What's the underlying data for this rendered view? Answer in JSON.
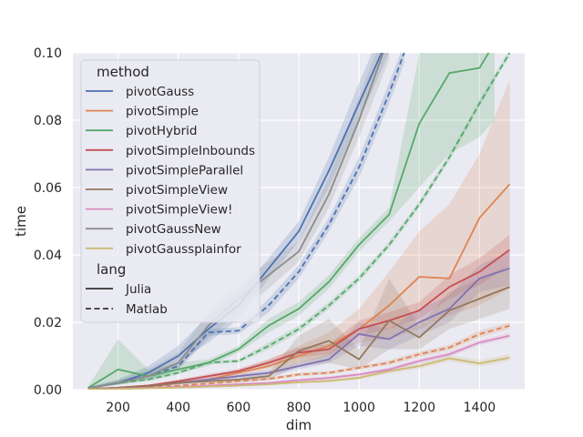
{
  "chart_data": {
    "type": "line",
    "xlabel": "dim",
    "ylabel": "time",
    "xlim": [
      50,
      1550
    ],
    "ylim": [
      0,
      0.1
    ],
    "xticks": [
      200,
      400,
      600,
      800,
      1000,
      1200,
      1400
    ],
    "yticks": [
      0.0,
      0.02,
      0.04,
      0.06,
      0.08,
      0.1
    ],
    "grid": true,
    "background": "#eaeaf2",
    "legend": {
      "placement": "top-left",
      "hue_title": "method",
      "style_title": "lang",
      "styles": [
        {
          "name": "Julia",
          "dash": "solid"
        },
        {
          "name": "Matlab",
          "dash": "dashed"
        }
      ]
    },
    "series": [
      {
        "name": "pivotGauss",
        "lang": "Julia",
        "color": "#4c72b0",
        "x": [
          100,
          200,
          300,
          400,
          500,
          600,
          700,
          800,
          900,
          1000,
          1100
        ],
        "y": [
          0.0005,
          0.002,
          0.005,
          0.01,
          0.018,
          0.025,
          0.036,
          0.047,
          0.065,
          0.085,
          0.105
        ],
        "lo": [
          0.0003,
          0.0015,
          0.004,
          0.008,
          0.014,
          0.021,
          0.033,
          0.044,
          0.06,
          0.08,
          0.1
        ],
        "hi": [
          0.0008,
          0.003,
          0.007,
          0.013,
          0.022,
          0.029,
          0.039,
          0.05,
          0.069,
          0.091,
          0.112
        ]
      },
      {
        "name": "pivotGauss",
        "lang": "Matlab",
        "color": "#4c72b0",
        "x": [
          100,
          200,
          300,
          400,
          500,
          600,
          700,
          800,
          900,
          1000,
          1100,
          1150
        ],
        "y": [
          0.0004,
          0.002,
          0.004,
          0.007,
          0.017,
          0.0175,
          0.025,
          0.035,
          0.049,
          0.066,
          0.088,
          0.1
        ],
        "lo": [
          0.0003,
          0.0015,
          0.003,
          0.006,
          0.016,
          0.0165,
          0.023,
          0.033,
          0.047,
          0.063,
          0.085,
          0.097
        ],
        "hi": [
          0.0005,
          0.0025,
          0.005,
          0.008,
          0.018,
          0.0185,
          0.027,
          0.037,
          0.051,
          0.069,
          0.091,
          0.103
        ]
      },
      {
        "name": "pivotSimple",
        "lang": "Julia",
        "color": "#dd8452",
        "x": [
          100,
          200,
          300,
          400,
          500,
          600,
          700,
          800,
          900,
          1000,
          1100,
          1200,
          1300,
          1400,
          1500
        ],
        "y": [
          0.0002,
          0.0006,
          0.0012,
          0.002,
          0.003,
          0.005,
          0.007,
          0.01,
          0.013,
          0.018,
          0.025,
          0.0335,
          0.033,
          0.051,
          0.061
        ],
        "lo": [
          0.0001,
          0.0004,
          0.0009,
          0.0016,
          0.0025,
          0.004,
          0.006,
          0.008,
          0.01,
          0.014,
          0.015,
          0.018,
          0.022,
          0.025,
          0.03
        ],
        "hi": [
          0.0003,
          0.0008,
          0.0015,
          0.0025,
          0.0036,
          0.006,
          0.009,
          0.013,
          0.017,
          0.024,
          0.035,
          0.047,
          0.055,
          0.07,
          0.092
        ]
      },
      {
        "name": "pivotSimple",
        "lang": "Matlab",
        "color": "#dd8452",
        "x": [
          100,
          200,
          300,
          400,
          500,
          600,
          700,
          800,
          900,
          1000,
          1100,
          1200,
          1300,
          1400,
          1500
        ],
        "y": [
          0.0002,
          0.0004,
          0.0008,
          0.0012,
          0.0018,
          0.0025,
          0.0032,
          0.0045,
          0.005,
          0.0065,
          0.008,
          0.0105,
          0.0125,
          0.0165,
          0.019
        ],
        "lo": [
          0.0001,
          0.0003,
          0.0006,
          0.001,
          0.0015,
          0.0021,
          0.0028,
          0.004,
          0.0045,
          0.006,
          0.0073,
          0.0097,
          0.0117,
          0.0155,
          0.018
        ],
        "hi": [
          0.0003,
          0.0005,
          0.001,
          0.0014,
          0.0021,
          0.0029,
          0.0036,
          0.005,
          0.0055,
          0.007,
          0.0087,
          0.0113,
          0.0133,
          0.0175,
          0.02
        ]
      },
      {
        "name": "pivotHybrid",
        "lang": "Julia",
        "color": "#55a868",
        "x": [
          100,
          200,
          300,
          400,
          500,
          600,
          700,
          800,
          900,
          1000,
          1100,
          1200,
          1300,
          1400,
          1450
        ],
        "y": [
          0.0005,
          0.006,
          0.004,
          0.006,
          0.008,
          0.012,
          0.019,
          0.024,
          0.032,
          0.043,
          0.052,
          0.079,
          0.094,
          0.0955,
          0.103
        ],
        "lo": [
          0.0003,
          0.0015,
          0.003,
          0.005,
          0.007,
          0.011,
          0.017,
          0.022,
          0.03,
          0.041,
          0.05,
          0.06,
          0.07,
          0.075,
          0.08
        ],
        "hi": [
          0.0008,
          0.015,
          0.006,
          0.008,
          0.009,
          0.013,
          0.021,
          0.026,
          0.034,
          0.045,
          0.054,
          0.1,
          0.11,
          0.11,
          0.11
        ]
      },
      {
        "name": "pivotHybrid",
        "lang": "Matlab",
        "color": "#55a868",
        "x": [
          100,
          200,
          300,
          400,
          500,
          600,
          700,
          800,
          900,
          1000,
          1100,
          1200,
          1300,
          1400,
          1500
        ],
        "y": [
          0.0004,
          0.002,
          0.003,
          0.005,
          0.008,
          0.0085,
          0.013,
          0.018,
          0.025,
          0.033,
          0.043,
          0.055,
          0.069,
          0.085,
          0.1
        ],
        "lo": [
          0.0003,
          0.0015,
          0.0025,
          0.0045,
          0.0075,
          0.008,
          0.012,
          0.017,
          0.024,
          0.032,
          0.042,
          0.054,
          0.068,
          0.084,
          0.099
        ],
        "hi": [
          0.0005,
          0.0025,
          0.0035,
          0.0055,
          0.0085,
          0.009,
          0.014,
          0.019,
          0.026,
          0.034,
          0.044,
          0.056,
          0.07,
          0.086,
          0.101
        ]
      },
      {
        "name": "pivotSimpleInbounds",
        "lang": "Julia",
        "color": "#c44e52",
        "x": [
          100,
          200,
          300,
          400,
          500,
          600,
          700,
          800,
          900,
          1000,
          1100,
          1200,
          1300,
          1400,
          1500
        ],
        "y": [
          0.0002,
          0.0006,
          0.0012,
          0.0025,
          0.004,
          0.0055,
          0.008,
          0.011,
          0.012,
          0.018,
          0.0205,
          0.0235,
          0.0305,
          0.035,
          0.0415
        ],
        "lo": [
          0.0001,
          0.0004,
          0.001,
          0.002,
          0.0035,
          0.0048,
          0.007,
          0.0095,
          0.0105,
          0.016,
          0.018,
          0.021,
          0.027,
          0.031,
          0.037
        ],
        "hi": [
          0.0003,
          0.0008,
          0.0015,
          0.003,
          0.0047,
          0.0062,
          0.009,
          0.0125,
          0.0135,
          0.0205,
          0.023,
          0.026,
          0.034,
          0.039,
          0.046
        ]
      },
      {
        "name": "pivotSimpleParallel",
        "lang": "Julia",
        "color": "#8172b3",
        "x": [
          100,
          200,
          300,
          400,
          500,
          600,
          700,
          800,
          900,
          1000,
          1100,
          1200,
          1300,
          1400,
          1500
        ],
        "y": [
          0.0002,
          0.0005,
          0.001,
          0.002,
          0.003,
          0.004,
          0.005,
          0.007,
          0.009,
          0.0165,
          0.015,
          0.02,
          0.024,
          0.033,
          0.036
        ],
        "lo": [
          0.0001,
          0.0004,
          0.0008,
          0.0016,
          0.0025,
          0.0034,
          0.0043,
          0.006,
          0.0078,
          0.013,
          0.012,
          0.016,
          0.02,
          0.029,
          0.031
        ],
        "hi": [
          0.0003,
          0.0006,
          0.0012,
          0.0024,
          0.0035,
          0.0046,
          0.0058,
          0.008,
          0.0105,
          0.02,
          0.018,
          0.024,
          0.028,
          0.037,
          0.041
        ]
      },
      {
        "name": "pivotSimpleView",
        "lang": "Julia",
        "color": "#937860",
        "x": [
          100,
          200,
          300,
          400,
          500,
          600,
          700,
          800,
          900,
          1000,
          1100,
          1200,
          1300,
          1400,
          1500
        ],
        "y": [
          0.0002,
          0.0006,
          0.001,
          0.002,
          0.0025,
          0.003,
          0.004,
          0.0115,
          0.0145,
          0.009,
          0.0205,
          0.0155,
          0.0235,
          0.027,
          0.0305
        ],
        "lo": [
          0.0001,
          0.0004,
          0.0008,
          0.0015,
          0.002,
          0.0025,
          0.003,
          0.007,
          0.008,
          0.006,
          0.012,
          0.012,
          0.018,
          0.021,
          0.024
        ],
        "hi": [
          0.0003,
          0.0008,
          0.0012,
          0.0025,
          0.003,
          0.0035,
          0.005,
          0.016,
          0.021,
          0.012,
          0.033,
          0.019,
          0.029,
          0.033,
          0.037
        ]
      },
      {
        "name": "pivotSimpleView!",
        "lang": "Julia",
        "color": "#da8bc3",
        "x": [
          100,
          200,
          300,
          400,
          500,
          600,
          700,
          800,
          900,
          1000,
          1100,
          1200,
          1300,
          1400,
          1500
        ],
        "y": [
          0.0001,
          0.0003,
          0.0005,
          0.0008,
          0.0012,
          0.0016,
          0.002,
          0.0028,
          0.0035,
          0.0045,
          0.006,
          0.0085,
          0.0105,
          0.014,
          0.016
        ],
        "lo": [
          0.0001,
          0.0002,
          0.0004,
          0.0006,
          0.001,
          0.0013,
          0.0017,
          0.0024,
          0.003,
          0.004,
          0.0054,
          0.0078,
          0.0097,
          0.0132,
          0.0152
        ],
        "hi": [
          0.0002,
          0.0004,
          0.0006,
          0.001,
          0.0014,
          0.0019,
          0.0023,
          0.0032,
          0.004,
          0.005,
          0.0066,
          0.0092,
          0.0113,
          0.0148,
          0.0168
        ]
      },
      {
        "name": "pivotGaussNew",
        "lang": "Julia",
        "color": "#8c8c8c",
        "x": [
          100,
          200,
          300,
          400,
          500,
          600,
          700,
          800,
          900,
          1000,
          1100
        ],
        "y": [
          0.0004,
          0.002,
          0.004,
          0.008,
          0.019,
          0.027,
          0.034,
          0.041,
          0.058,
          0.08,
          0.105
        ],
        "lo": [
          0.0002,
          0.0015,
          0.003,
          0.006,
          0.015,
          0.023,
          0.03,
          0.038,
          0.054,
          0.075,
          0.098
        ],
        "hi": [
          0.0006,
          0.003,
          0.006,
          0.011,
          0.023,
          0.031,
          0.038,
          0.044,
          0.063,
          0.087,
          0.11
        ]
      },
      {
        "name": "pivotGaussplainfor",
        "lang": "Julia",
        "color": "#ccb974",
        "x": [
          100,
          200,
          300,
          400,
          500,
          600,
          700,
          800,
          900,
          1000,
          1100,
          1200,
          1300,
          1400,
          1500
        ],
        "y": [
          0.0001,
          0.0002,
          0.0004,
          0.0006,
          0.0009,
          0.0012,
          0.0016,
          0.0022,
          0.0026,
          0.0035,
          0.0055,
          0.007,
          0.0093,
          0.0078,
          0.0095
        ],
        "lo": [
          0.0001,
          0.0001,
          0.0003,
          0.0004,
          0.0007,
          0.001,
          0.0013,
          0.0018,
          0.0021,
          0.003,
          0.0048,
          0.0062,
          0.0084,
          0.0068,
          0.0085
        ],
        "hi": [
          0.0002,
          0.0003,
          0.0005,
          0.0008,
          0.0011,
          0.0014,
          0.0019,
          0.0026,
          0.0031,
          0.004,
          0.0062,
          0.0078,
          0.0102,
          0.0088,
          0.0105
        ]
      }
    ],
    "legend_entries": [
      {
        "name": "pivotGauss",
        "color": "#4c72b0"
      },
      {
        "name": "pivotSimple",
        "color": "#dd8452"
      },
      {
        "name": "pivotHybrid",
        "color": "#55a868"
      },
      {
        "name": "pivotSimpleInbounds",
        "color": "#c44e52"
      },
      {
        "name": "pivotSimpleParallel",
        "color": "#8172b3"
      },
      {
        "name": "pivotSimpleView",
        "color": "#937860"
      },
      {
        "name": "pivotSimpleView!",
        "color": "#da8bc3"
      },
      {
        "name": "pivotGaussNew",
        "color": "#8c8c8c"
      },
      {
        "name": "pivotGaussplainfor",
        "color": "#ccb974"
      }
    ]
  }
}
